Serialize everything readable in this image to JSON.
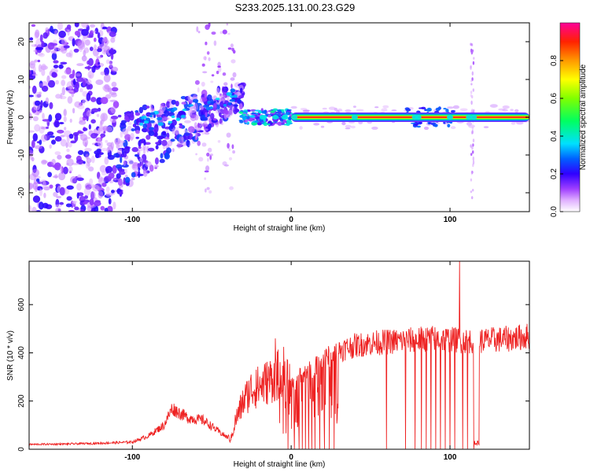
{
  "title": "S233.2025.131.00.23.G29",
  "chart_data": [
    {
      "type": "heatmap",
      "xlabel": "Height of straight line (km)",
      "ylabel": "Frequency (Hz)",
      "xlim": [
        -165,
        150
      ],
      "ylim": [
        -25,
        25
      ],
      "x_ticks": [
        -100,
        0,
        100
      ],
      "y_ticks": [
        -20,
        -10,
        0,
        10,
        20
      ],
      "colorbar": {
        "label": "Normalized spectral amplitude",
        "range": [
          0,
          1
        ],
        "ticks": [
          "0.0",
          "0.2",
          "0.4",
          "0.6",
          "0.8"
        ],
        "tick_values": [
          0,
          0.2,
          0.4,
          0.6,
          0.8
        ],
        "colors": [
          "#ffffff",
          "#cc66ff",
          "#6600ff",
          "#0000ff",
          "#00ffff",
          "#00ff00",
          "#ffff00",
          "#ff8800",
          "#ff0000",
          "#ff0099"
        ]
      },
      "features": [
        {
          "from_km": -165,
          "to_km": -110,
          "freq_range_hz": [
            -25,
            25
          ],
          "amplitude": 0.15
        },
        {
          "from_km": -110,
          "to_km": -30,
          "freq_trend_hz": [
            -10,
            6
          ],
          "amplitude": 0.25
        },
        {
          "from_km": -30,
          "to_km": 0,
          "freq_center_hz": 0,
          "amplitude": 0.45
        },
        {
          "from_km": 0,
          "to_km": 150,
          "freq_center_hz": 0,
          "amplitude": 0.95
        }
      ]
    },
    {
      "type": "line",
      "xlabel": "Height of straight line (km)",
      "ylabel": "SNR (10 * v/v)",
      "xlim": [
        -165,
        150
      ],
      "ylim": [
        0,
        780
      ],
      "x_ticks": [
        -100,
        0,
        100
      ],
      "y_ticks": [
        0,
        200,
        400,
        600
      ],
      "color": "#ee2222",
      "envelope": {
        "x": [
          -165,
          -140,
          -120,
          -100,
          -90,
          -80,
          -75,
          -70,
          -65,
          -55,
          -45,
          -38,
          -35,
          -30,
          -25,
          -20,
          -15,
          -10,
          -5,
          0,
          5,
          10,
          15,
          20,
          25,
          30,
          40,
          50,
          60,
          70,
          80,
          90,
          100,
          110,
          120,
          130,
          140,
          150
        ],
        "y": [
          20,
          22,
          25,
          30,
          55,
          100,
          170,
          150,
          130,
          120,
          70,
          40,
          120,
          200,
          250,
          260,
          280,
          300,
          320,
          260,
          300,
          320,
          340,
          370,
          390,
          410,
          430,
          440,
          445,
          450,
          455,
          460,
          455,
          450,
          450,
          455,
          460,
          470
        ]
      },
      "spikes": [
        {
          "x": -22,
          "y": 330
        },
        {
          "x": -10,
          "y": 460
        },
        {
          "x": 106,
          "y": 780
        }
      ],
      "dropouts_x": [
        -2,
        2,
        5,
        7,
        9,
        11,
        13,
        15,
        18,
        21,
        24,
        27,
        60,
        72,
        78,
        82,
        85,
        88,
        91,
        94,
        97,
        100,
        103,
        108,
        111,
        115,
        116,
        117,
        118
      ]
    }
  ]
}
